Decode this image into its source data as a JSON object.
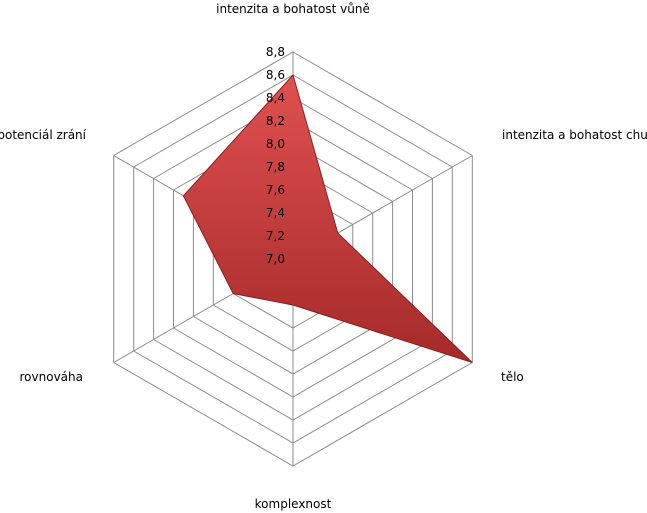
{
  "chart_data": {
    "type": "radar",
    "categories": [
      "intenzita a bohatost vůně",
      "intenzita a bohatost chuti",
      "tělo",
      "komplexnost",
      "rovnováha",
      "potenciál zrání"
    ],
    "series": [
      {
        "values": [
          8.6,
          7.45,
          8.8,
          7.4,
          7.6,
          8.1
        ]
      }
    ],
    "rlim": [
      7.0,
      8.8
    ],
    "ticks": [
      "7,0",
      "7,2",
      "7,4",
      "7,6",
      "7,8",
      "8,0",
      "8,2",
      "8,4",
      "8,6",
      "8,8"
    ],
    "tick_values": [
      7.0,
      7.2,
      7.4,
      7.6,
      7.8,
      8.0,
      8.2,
      8.4,
      8.6,
      8.8
    ],
    "legend": "none",
    "series_color": "#c03030"
  }
}
